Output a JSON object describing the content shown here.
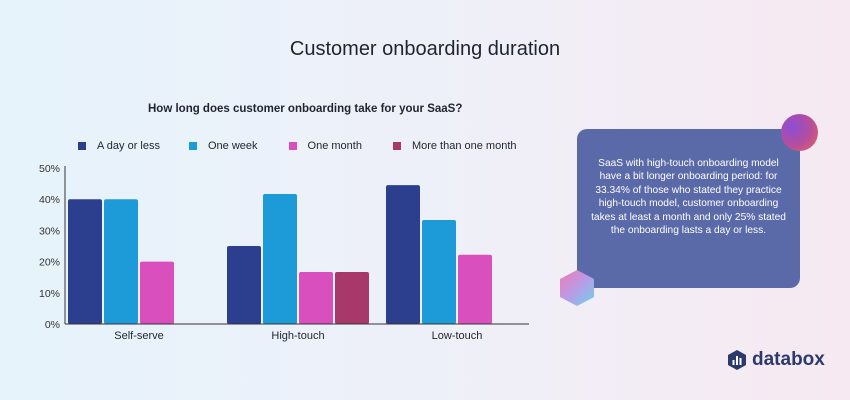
{
  "page_title": "Customer onboarding duration",
  "colors": {
    "a_day_or_less": "#2c3f8f",
    "one_week": "#1d9ad8",
    "one_month": "#d94fbd",
    "more_than_one_month": "#a8386a",
    "axis": "#333333",
    "grid": "#d9d9d9"
  },
  "chart_data": {
    "type": "bar",
    "title": "How long does customer onboarding take for your SaaS?",
    "categories": [
      "Self-serve",
      "High-touch",
      "Low-touch"
    ],
    "series": [
      {
        "name": "A day or less",
        "values": [
          40,
          25,
          44.5
        ]
      },
      {
        "name": "One week",
        "values": [
          40,
          41.67,
          33.33
        ]
      },
      {
        "name": "One month",
        "values": [
          20,
          16.67,
          22.2
        ]
      },
      {
        "name": "More than one month",
        "values": [
          null,
          16.67,
          null
        ]
      }
    ],
    "ylim": [
      0,
      50
    ],
    "yticks": [
      "0%",
      "10%",
      "20%",
      "30%",
      "40%",
      "50%"
    ],
    "legend_position": "top",
    "grid": false
  },
  "note": {
    "text": "SaaS with high-touch onboarding model have a bit longer onboarding period: for 33.34% of those who stated they practice high-touch model, customer onboarding takes at least a month and only 25% stated the onboarding lasts a day or less."
  },
  "brand": {
    "name": "databox",
    "icon": "databox-logo-icon"
  }
}
